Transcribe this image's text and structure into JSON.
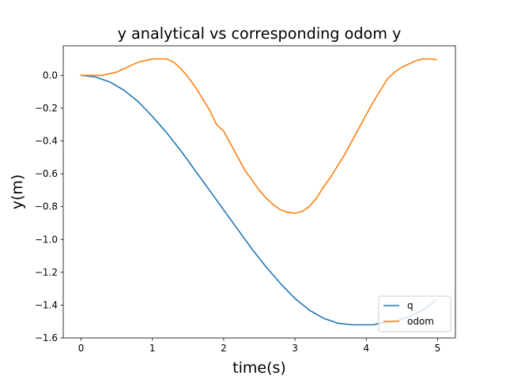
{
  "chart_data": {
    "type": "line",
    "title": "y analytical vs corresponding odom y",
    "xlabel": "time(s)",
    "ylabel": "y(m)",
    "xlim": [
      -0.25,
      5.25
    ],
    "ylim": [
      -1.6,
      0.18
    ],
    "xticks": [
      0,
      1,
      2,
      3,
      4,
      5
    ],
    "yticks": [
      0.0,
      -0.2,
      -0.4,
      -0.6,
      -0.8,
      -1.0,
      -1.2,
      -1.4,
      -1.6
    ],
    "ytick_labels": [
      "0.0",
      "−0.2",
      "−0.4",
      "−0.6",
      "−0.8",
      "−1.0",
      "−1.2",
      "−1.4",
      "−1.6"
    ],
    "grid": false,
    "legend_position": "lower-right",
    "series": [
      {
        "name": "q",
        "color": "#1f77b4",
        "x": [
          0,
          0.2,
          0.4,
          0.6,
          0.8,
          1.0,
          1.2,
          1.4,
          1.6,
          1.8,
          2.0,
          2.2,
          2.4,
          2.6,
          2.8,
          3.0,
          3.2,
          3.4,
          3.6,
          3.8,
          4.0,
          4.1,
          4.2,
          4.4,
          4.6,
          4.8,
          4.98
        ],
        "y": [
          0.0,
          -0.01,
          -0.04,
          -0.09,
          -0.16,
          -0.25,
          -0.35,
          -0.46,
          -0.58,
          -0.7,
          -0.82,
          -0.94,
          -1.06,
          -1.17,
          -1.27,
          -1.36,
          -1.43,
          -1.48,
          -1.51,
          -1.52,
          -1.52,
          -1.52,
          -1.51,
          -1.5,
          -1.47,
          -1.43,
          -1.37
        ]
      },
      {
        "name": "odom",
        "color": "#ff7f0e",
        "x": [
          0,
          0.1,
          0.2,
          0.3,
          0.4,
          0.5,
          0.6,
          0.7,
          0.8,
          0.9,
          1.0,
          1.1,
          1.2,
          1.3,
          1.4,
          1.5,
          1.6,
          1.7,
          1.8,
          1.9,
          2.0,
          2.1,
          2.2,
          2.3,
          2.4,
          2.5,
          2.6,
          2.7,
          2.8,
          2.9,
          3.0,
          3.1,
          3.2,
          3.3,
          3.4,
          3.5,
          3.6,
          3.7,
          3.8,
          3.9,
          4.0,
          4.1,
          4.2,
          4.3,
          4.4,
          4.5,
          4.6,
          4.7,
          4.8,
          4.9,
          4.98
        ],
        "y": [
          0.0,
          0.0,
          0.0,
          0.0,
          0.01,
          0.02,
          0.04,
          0.06,
          0.08,
          0.09,
          0.1,
          0.1,
          0.1,
          0.08,
          0.04,
          -0.01,
          -0.07,
          -0.14,
          -0.21,
          -0.3,
          -0.34,
          -0.42,
          -0.5,
          -0.58,
          -0.64,
          -0.7,
          -0.75,
          -0.79,
          -0.82,
          -0.835,
          -0.84,
          -0.83,
          -0.8,
          -0.75,
          -0.68,
          -0.62,
          -0.55,
          -0.48,
          -0.4,
          -0.32,
          -0.24,
          -0.16,
          -0.09,
          -0.02,
          0.02,
          0.05,
          0.07,
          0.09,
          0.1,
          0.1,
          0.095
        ]
      }
    ]
  }
}
